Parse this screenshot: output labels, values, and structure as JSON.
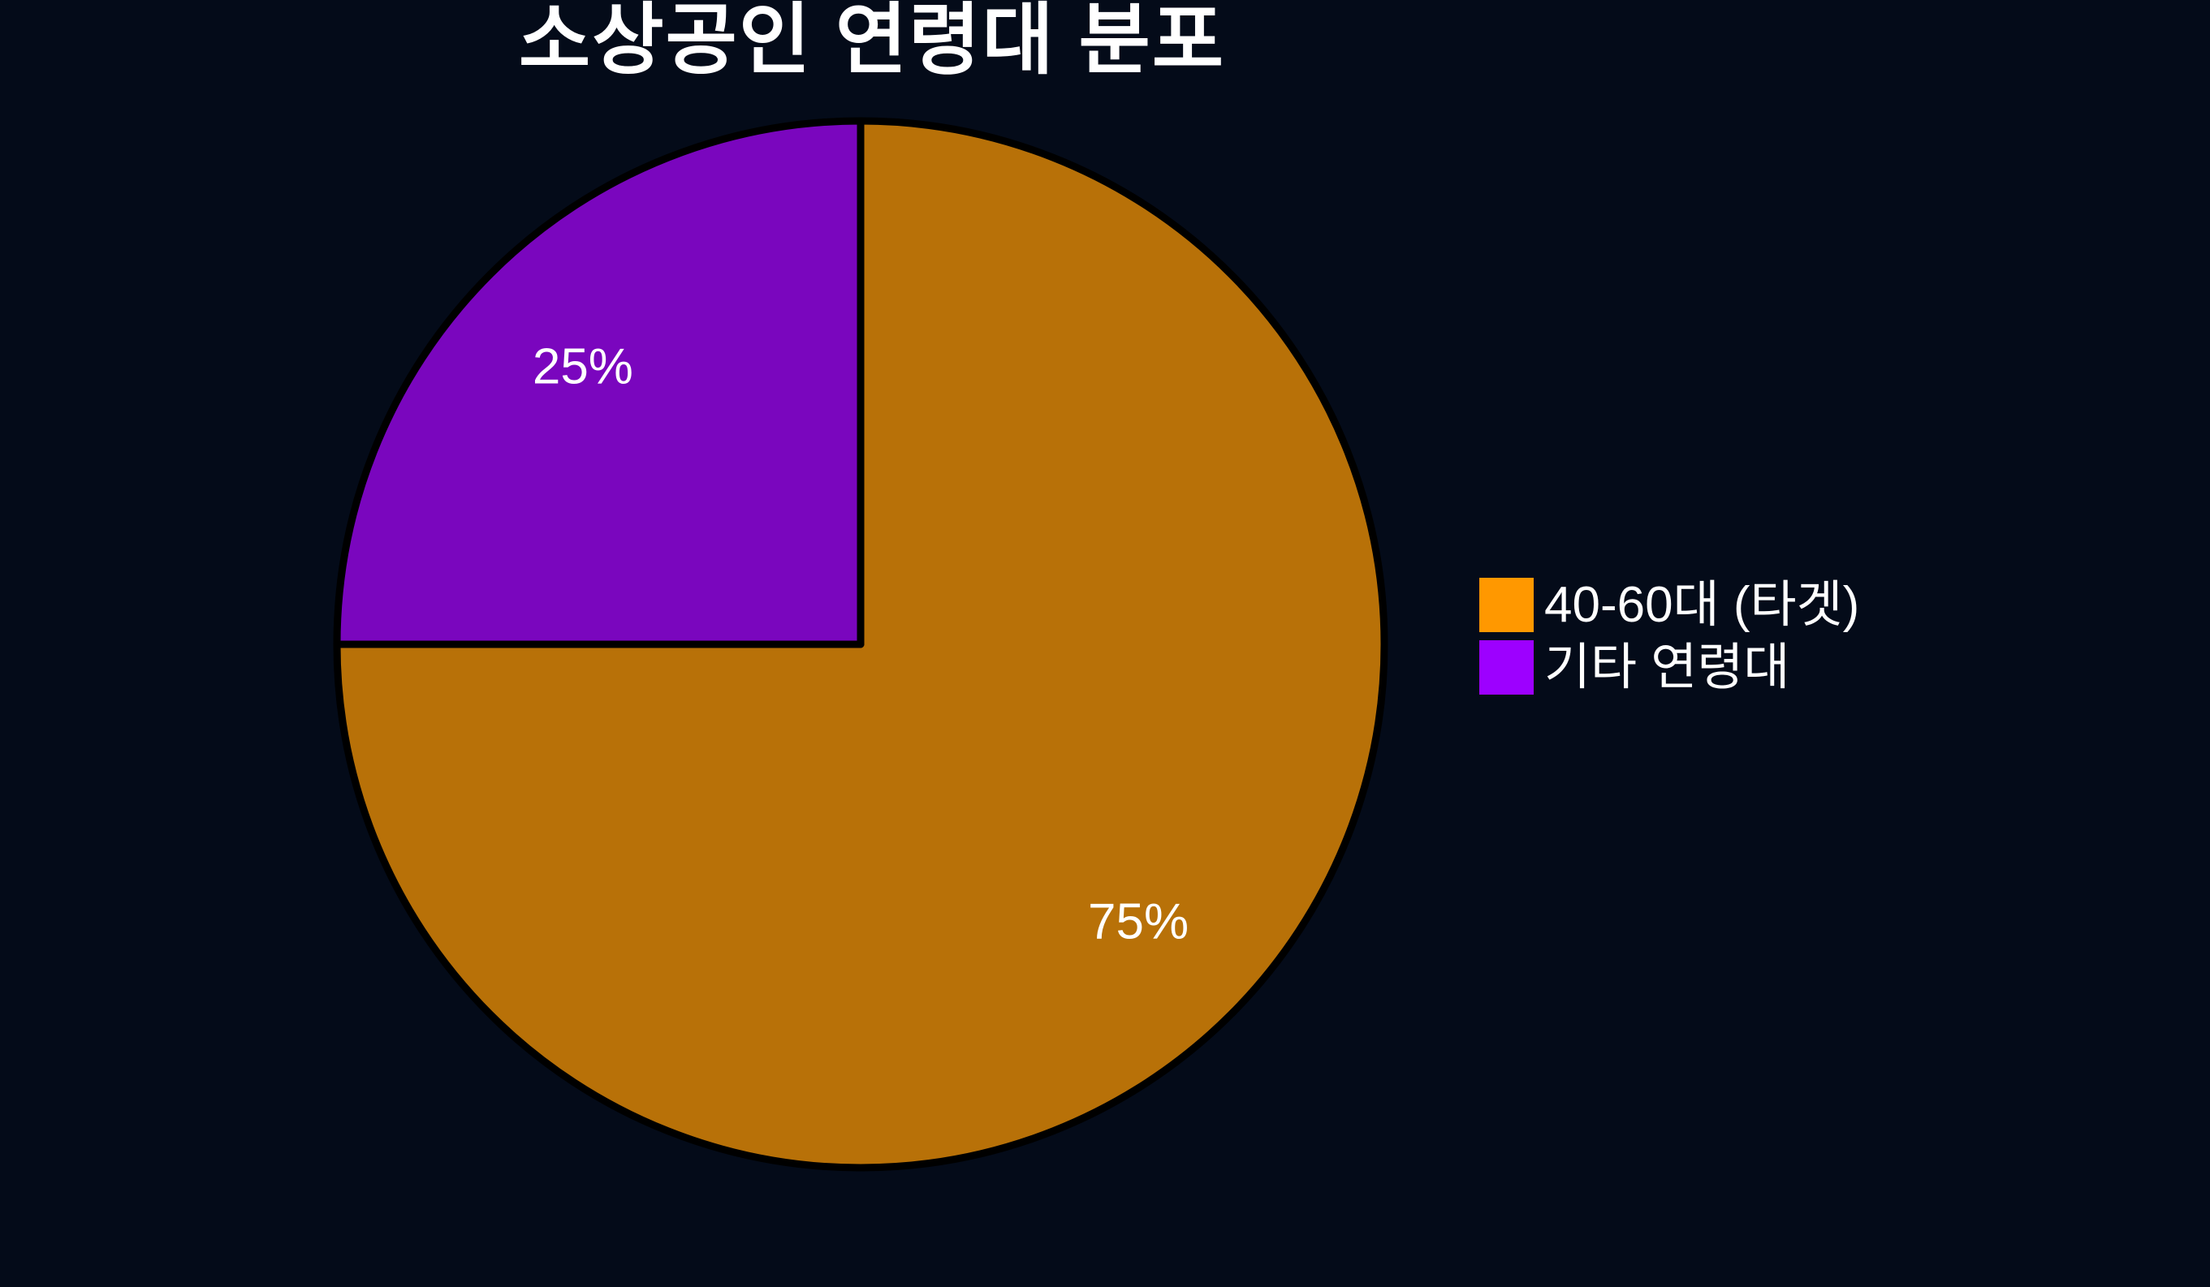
{
  "chart_data": {
    "type": "pie",
    "title": "소상공인 연령대 분포",
    "slices": [
      {
        "label": "40-60대 (타겟)",
        "value": 75,
        "pct_label": "75%",
        "slice_color": "#b87108",
        "legend_color": "#ff9800"
      },
      {
        "label": "기타 연령대",
        "value": 25,
        "pct_label": "25%",
        "slice_color": "#7a06be",
        "legend_color": "#9d00ff"
      }
    ],
    "start_angle_deg": 90,
    "direction": "clockwise",
    "legend_position": "center-right",
    "grid": "off",
    "colors": {
      "background": "#040b19",
      "wedge_outline": "#000000",
      "text": "#ffffff"
    }
  }
}
